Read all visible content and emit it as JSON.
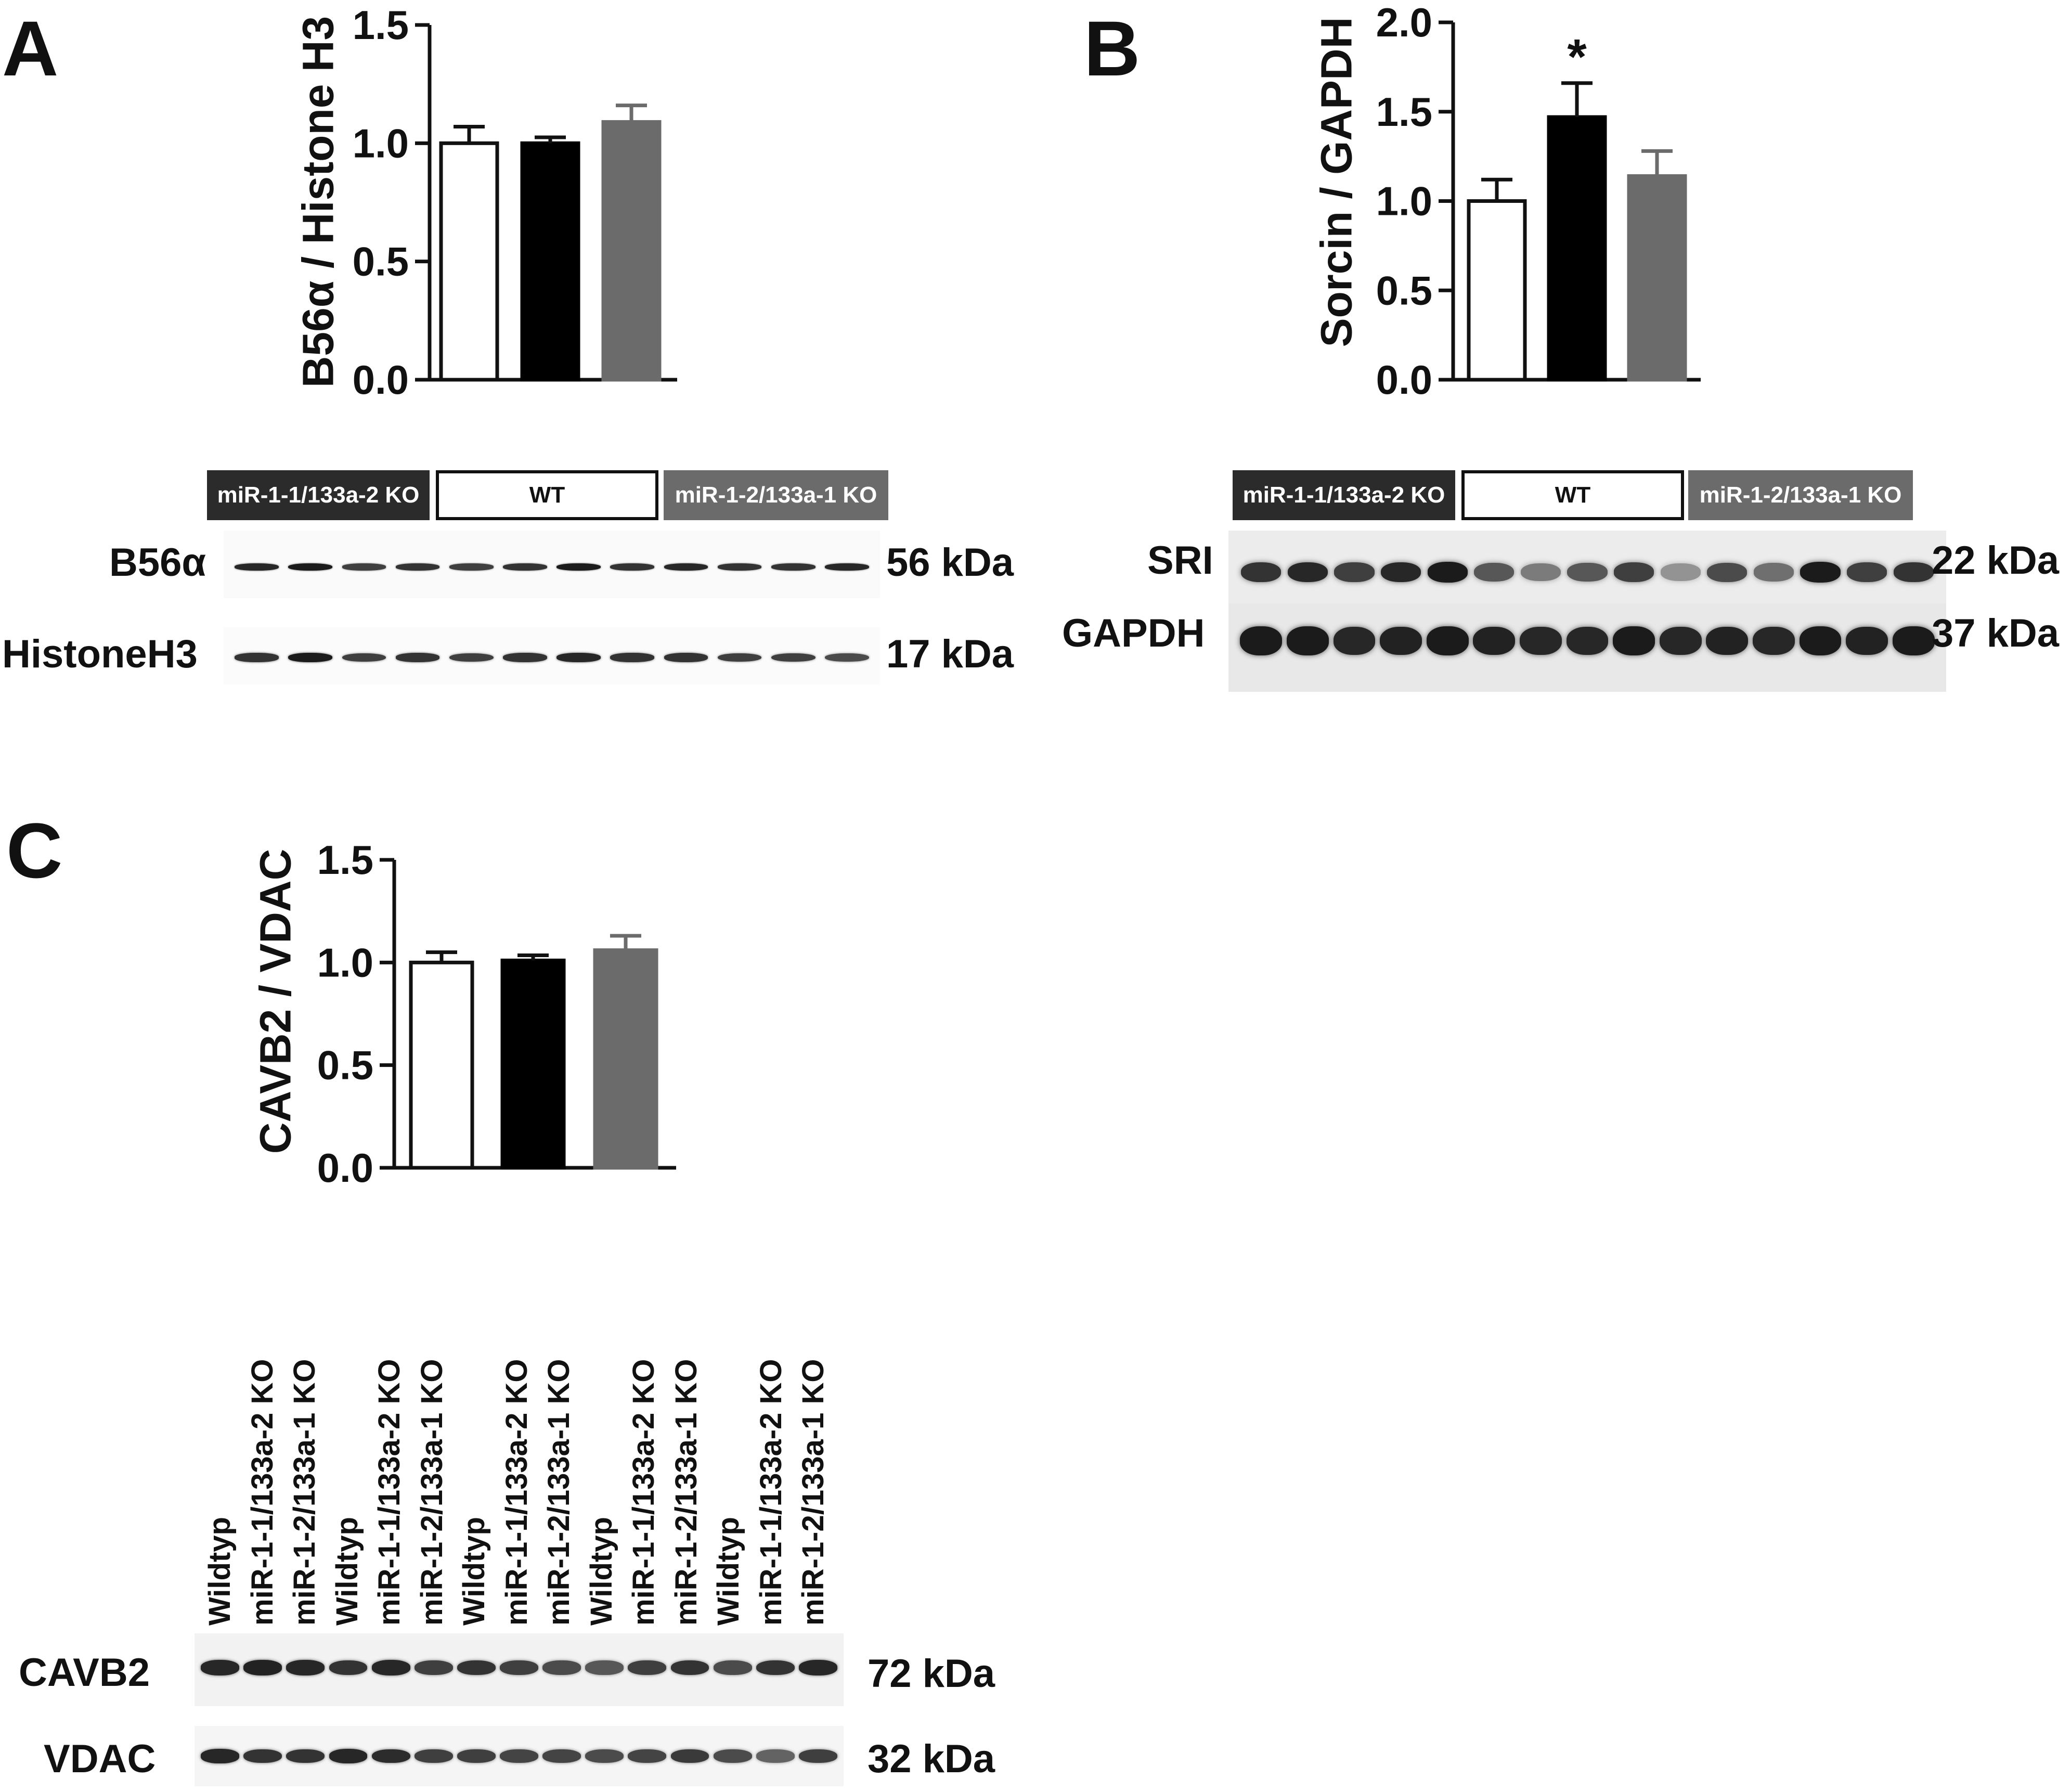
{
  "panels": {
    "A": {
      "letter": "A"
    },
    "B": {
      "letter": "B"
    },
    "C": {
      "letter": "C"
    }
  },
  "chart_data": [
    {
      "id": "A",
      "type": "bar",
      "categories": [
        "",
        "",
        ""
      ],
      "values": [
        1.0,
        1.0,
        1.09
      ],
      "errors": [
        0.07,
        0.025,
        0.07
      ],
      "bar_colors": [
        "#ffffff",
        "#000000",
        "#6b6b6b"
      ],
      "ylabel": "B56α / Histone H3",
      "ylim": [
        0,
        1.5
      ],
      "yticks": [
        "0.0",
        "0.5",
        "1.0",
        "1.5"
      ],
      "annotations": []
    },
    {
      "id": "B",
      "type": "bar",
      "categories": [
        "",
        "",
        ""
      ],
      "values": [
        1.0,
        1.47,
        1.14
      ],
      "errors": [
        0.12,
        0.19,
        0.14
      ],
      "bar_colors": [
        "#ffffff",
        "#000000",
        "#6b6b6b"
      ],
      "ylabel": "Sorcin / GAPDH",
      "ylim": [
        0,
        2.0
      ],
      "yticks": [
        "0.0",
        "0.5",
        "1.0",
        "1.5",
        "2.0"
      ],
      "annotations": [
        "",
        "*",
        ""
      ]
    },
    {
      "id": "C",
      "type": "bar",
      "categories": [
        "",
        "",
        ""
      ],
      "values": [
        1.0,
        1.01,
        1.06
      ],
      "errors": [
        0.05,
        0.025,
        0.07
      ],
      "bar_colors": [
        "#ffffff",
        "#000000",
        "#6b6b6b"
      ],
      "ylabel": "CAVB2 / VDAC",
      "ylim": [
        0,
        1.5
      ],
      "yticks": [
        "0.0",
        "0.5",
        "1.0",
        "1.5"
      ],
      "annotations": []
    }
  ],
  "blots": {
    "A": {
      "groups": [
        "miR-1-1/133a-2 KO",
        "WT",
        "miR-1-2/133a-1 KO"
      ],
      "rows": [
        {
          "label": "B56α",
          "kda": "56 kDa",
          "intensities": [
            0.9,
            0.95,
            0.8,
            0.85,
            0.8,
            0.85,
            0.95,
            0.85,
            0.9,
            0.85,
            0.85,
            0.9
          ]
        },
        {
          "label": "HistoneH3",
          "kda": "17 kDa",
          "intensities": [
            0.85,
            0.95,
            0.8,
            0.85,
            0.8,
            0.85,
            0.9,
            0.85,
            0.85,
            0.8,
            0.8,
            0.75
          ]
        }
      ]
    },
    "B": {
      "groups": [
        "miR-1-1/133a-2 KO",
        "WT",
        "miR-1-2/133a-1 KO"
      ],
      "rows": [
        {
          "label": "SRI",
          "kda": "22 kDa",
          "intensities": [
            0.85,
            0.9,
            0.8,
            0.9,
            0.95,
            0.7,
            0.55,
            0.7,
            0.8,
            0.45,
            0.75,
            0.6,
            0.95,
            0.8,
            0.85
          ]
        },
        {
          "label": "GAPDH",
          "kda": "37 kDa",
          "intensities": [
            0.95,
            0.95,
            0.9,
            0.92,
            0.95,
            0.92,
            0.9,
            0.9,
            0.95,
            0.9,
            0.92,
            0.9,
            0.95,
            0.92,
            0.95
          ]
        }
      ]
    },
    "C": {
      "lanes": [
        "Wildtyp",
        "miR-1-1/133a-2 KO",
        "miR-1-2/133a-1 KO",
        "Wildtyp",
        "miR-1-1/133a-2 KO",
        "miR-1-2/133a-1 KO",
        "Wildtyp",
        "miR-1-1/133a-2 KO",
        "miR-1-2/133a-1 KO",
        "Wildtyp",
        "miR-1-1/133a-2 KO",
        "miR-1-2/133a-1 KO",
        "Wildtyp",
        "miR-1-1/133a-2 KO",
        "miR-1-2/133a-1 KO"
      ],
      "rows": [
        {
          "label": "CAVB2",
          "kda": "72 kDa",
          "intensities": [
            0.9,
            0.92,
            0.9,
            0.85,
            0.9,
            0.8,
            0.85,
            0.8,
            0.75,
            0.7,
            0.8,
            0.85,
            0.75,
            0.85,
            0.9
          ]
        },
        {
          "label": "VDAC",
          "kda": "32 kDa",
          "intensities": [
            0.9,
            0.85,
            0.85,
            0.9,
            0.88,
            0.8,
            0.8,
            0.78,
            0.78,
            0.75,
            0.78,
            0.82,
            0.75,
            0.65,
            0.8
          ]
        }
      ]
    }
  }
}
